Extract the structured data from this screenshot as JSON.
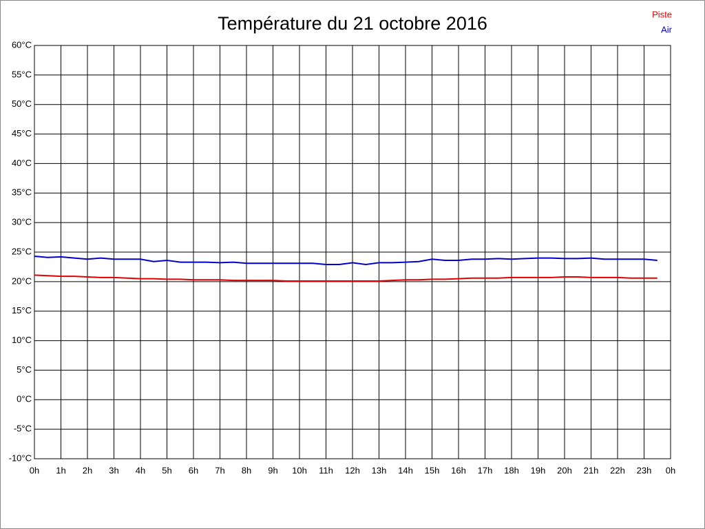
{
  "chart_data": {
    "type": "line",
    "title": "Température du 21 octobre 2016",
    "x": [
      0,
      0.5,
      1,
      1.5,
      2,
      2.5,
      3,
      3.5,
      4,
      4.5,
      5,
      5.5,
      6,
      6.5,
      7,
      7.5,
      8,
      8.5,
      9,
      9.5,
      10,
      10.5,
      11,
      11.5,
      12,
      12.5,
      13,
      13.5,
      14,
      14.5,
      15,
      15.5,
      16,
      16.5,
      17,
      17.5,
      18,
      18.5,
      19,
      19.5,
      20,
      20.5,
      21,
      21.5,
      22,
      22.5,
      23,
      23.5
    ],
    "series": [
      {
        "name": "Piste",
        "color": "#e00000",
        "values": [
          21.1,
          21.0,
          20.9,
          20.9,
          20.8,
          20.7,
          20.7,
          20.6,
          20.5,
          20.5,
          20.4,
          20.4,
          20.3,
          20.3,
          20.3,
          20.2,
          20.2,
          20.2,
          20.2,
          20.1,
          20.1,
          20.1,
          20.1,
          20.1,
          20.1,
          20.1,
          20.1,
          20.2,
          20.3,
          20.3,
          20.4,
          20.4,
          20.5,
          20.6,
          20.6,
          20.6,
          20.7,
          20.7,
          20.7,
          20.7,
          20.8,
          20.8,
          20.7,
          20.7,
          20.7,
          20.6,
          20.6,
          20.6
        ]
      },
      {
        "name": "Air",
        "color": "#0000cc",
        "values": [
          24.3,
          24.1,
          24.2,
          24.0,
          23.8,
          24.0,
          23.8,
          23.8,
          23.8,
          23.4,
          23.6,
          23.3,
          23.3,
          23.3,
          23.2,
          23.3,
          23.1,
          23.1,
          23.1,
          23.1,
          23.1,
          23.1,
          22.9,
          22.9,
          23.2,
          22.9,
          23.2,
          23.2,
          23.3,
          23.4,
          23.8,
          23.6,
          23.6,
          23.8,
          23.8,
          23.9,
          23.8,
          23.9,
          24.0,
          24.0,
          23.9,
          23.9,
          24.0,
          23.8,
          23.8,
          23.8,
          23.8,
          23.6
        ]
      }
    ],
    "xlim": [
      0,
      24
    ],
    "xticks": [
      {
        "value": 0,
        "label": "0h"
      },
      {
        "value": 1,
        "label": "1h"
      },
      {
        "value": 2,
        "label": "2h"
      },
      {
        "value": 3,
        "label": "3h"
      },
      {
        "value": 4,
        "label": "4h"
      },
      {
        "value": 5,
        "label": "5h"
      },
      {
        "value": 6,
        "label": "6h"
      },
      {
        "value": 7,
        "label": "7h"
      },
      {
        "value": 8,
        "label": "8h"
      },
      {
        "value": 9,
        "label": "9h"
      },
      {
        "value": 10,
        "label": "10h"
      },
      {
        "value": 11,
        "label": "11h"
      },
      {
        "value": 12,
        "label": "12h"
      },
      {
        "value": 13,
        "label": "13h"
      },
      {
        "value": 14,
        "label": "14h"
      },
      {
        "value": 15,
        "label": "15h"
      },
      {
        "value": 16,
        "label": "16h"
      },
      {
        "value": 17,
        "label": "17h"
      },
      {
        "value": 18,
        "label": "18h"
      },
      {
        "value": 19,
        "label": "19h"
      },
      {
        "value": 20,
        "label": "20h"
      },
      {
        "value": 21,
        "label": "21h"
      },
      {
        "value": 22,
        "label": "22h"
      },
      {
        "value": 23,
        "label": "23h"
      },
      {
        "value": 24,
        "label": "0h"
      }
    ],
    "ylim": [
      -10,
      60
    ],
    "yticks": [
      {
        "value": -10,
        "label": "-10°C"
      },
      {
        "value": -5,
        "label": "-5°C"
      },
      {
        "value": 0,
        "label": "0°C"
      },
      {
        "value": 5,
        "label": "5°C"
      },
      {
        "value": 10,
        "label": "10°C"
      },
      {
        "value": 15,
        "label": "15°C"
      },
      {
        "value": 20,
        "label": "20°C"
      },
      {
        "value": 25,
        "label": "25°C"
      },
      {
        "value": 30,
        "label": "30°C"
      },
      {
        "value": 35,
        "label": "35°C"
      },
      {
        "value": 40,
        "label": "40°C"
      },
      {
        "value": 45,
        "label": "45°C"
      },
      {
        "value": 50,
        "label": "50°C"
      },
      {
        "value": 55,
        "label": "55°C"
      },
      {
        "value": 60,
        "label": "60°C"
      }
    ],
    "grid": true,
    "legend": "top-right"
  }
}
